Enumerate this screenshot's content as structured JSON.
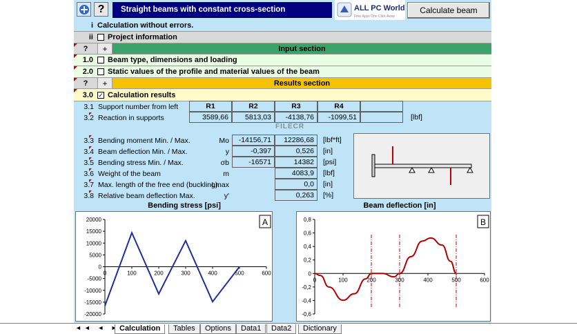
{
  "header": {
    "title": "Straight beams with constant cross-section",
    "calc_button": "Calculate beam",
    "help_glyph": "?"
  },
  "logo": {
    "line1": "ALL PC World",
    "line2": "Free Apps One Click Away"
  },
  "rows": {
    "status": {
      "num": "i",
      "text": "Calculation without errors."
    },
    "project": {
      "num": "ii",
      "text": "Project information"
    },
    "input_section": {
      "q": "?",
      "pm": "+",
      "text": "Input section"
    },
    "beam_type": {
      "num": "1.0",
      "text": "Beam type, dimensions and loading"
    },
    "static_values": {
      "num": "2.0",
      "text": "Static values of the profile and material values of the beam"
    },
    "results_section": {
      "q": "?",
      "pm": "+",
      "text": "Results section"
    },
    "calc_results": {
      "num": "3.0",
      "text": "Calculation results",
      "check": "✓"
    }
  },
  "supports": {
    "num1": "3.1",
    "label1": "Support number from left",
    "num2": "3.2",
    "label2": "Reaction in supports",
    "headers": [
      "R1",
      "R2",
      "R3",
      "R4",
      ""
    ],
    "values": [
      "3589,66",
      "5813,03",
      "-4138,76",
      "-1099,51",
      ""
    ],
    "unit": "[lbf]"
  },
  "results": [
    {
      "num": "3.3",
      "label": "Bending moment Min. / Max.",
      "sym": "Mo",
      "min": "-14156,71",
      "max": "12286,68",
      "unit": "[lbf*ft]"
    },
    {
      "num": "3.4",
      "label": "Beam deflection Min. / Max.",
      "sym": "y",
      "min": "-0,397",
      "max": "0,526",
      "unit": "[in]"
    },
    {
      "num": "3.5",
      "label": "Bending stress Min. / Max.",
      "sym": "σb",
      "min": "-16571",
      "max": "14382",
      "unit": "[psi]"
    },
    {
      "num": "3.6",
      "label": "Weight of the beam",
      "sym": "m",
      "min": "",
      "max": "4083,9",
      "unit": "[lbf]"
    },
    {
      "num": "3.7",
      "label": "Max. length of the free end (buckling).",
      "sym": "Lmax",
      "min": "",
      "max": "0,0",
      "unit": "[in]"
    },
    {
      "num": "3.8",
      "label": "Relative beam deflection Max.",
      "sym": "y'",
      "min": "",
      "max": "0,263",
      "unit": "[%]"
    }
  ],
  "watermark": "FILECR",
  "chart_data": [
    {
      "type": "line",
      "title": "Bending stress  [psi]",
      "marker": "A",
      "x": [
        0,
        100,
        200,
        300,
        400,
        500
      ],
      "y": [
        -16571,
        14382,
        -11500,
        11000,
        -14800,
        0
      ],
      "xlim": [
        0,
        600
      ],
      "ylim": [
        -20000,
        20000
      ],
      "xticks": [
        "0",
        "100",
        "200",
        "300",
        "400",
        "500",
        "600"
      ],
      "yticks": [
        "20000",
        "15000",
        "10000",
        "5000",
        "0",
        "-5000",
        "-10000",
        "-15000",
        "-20000"
      ],
      "color": "#1f2f9a"
    },
    {
      "type": "line",
      "title": "Beam deflection  [in]",
      "marker": "B",
      "x": [
        0,
        20,
        50,
        100,
        140,
        180,
        200,
        240,
        280,
        300,
        340,
        380,
        410,
        450,
        480,
        500
      ],
      "y": [
        0,
        -0.03,
        -0.2,
        -0.397,
        -0.3,
        -0.08,
        0,
        0,
        -0.05,
        0,
        0.25,
        0.48,
        0.526,
        0.42,
        0.18,
        0
      ],
      "xlim": [
        0,
        600
      ],
      "ylim": [
        -0.6,
        0.8
      ],
      "supports_x": [
        200,
        300,
        500
      ],
      "xticks": [
        "0",
        "100",
        "200",
        "300",
        "400",
        "500",
        "600"
      ],
      "yticks": [
        "0,8",
        "0,6",
        "0,4",
        "0,2",
        "0",
        "-0,2",
        "-0,4",
        "-0,6"
      ],
      "color": "#b00000"
    }
  ],
  "tabs": [
    "Calculation",
    "Tables",
    "Options",
    "Data1",
    "Data2",
    "Dictionary"
  ],
  "active_tab": 0,
  "colors": {
    "sheet_bg": "#bfe4f7",
    "title_bg": "#000080",
    "input_section": "#3aa36a",
    "results_section": "#f5c400",
    "row_light": "#e9fde4",
    "results_row": "#fffbc8"
  }
}
